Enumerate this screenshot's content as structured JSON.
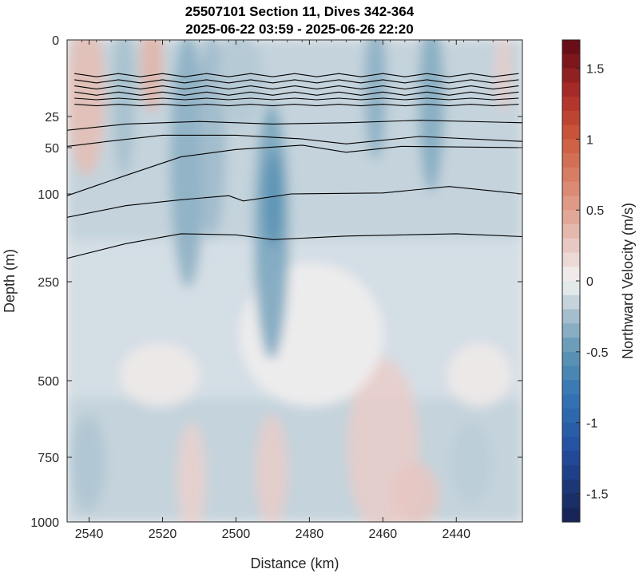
{
  "chart_data": {
    "type": "heatmap",
    "title": "25507101 Section 11, Dives 342-364",
    "subtitle": "2025-06-22 03:59 - 2025-06-26 22:20",
    "xlabel": "Distance (km)",
    "ylabel": "Depth (m)",
    "colorbar_label": "Northward Velocity (m/s)",
    "xlim": [
      2546,
      2422
    ],
    "x_ticks": [
      "2540",
      "2520",
      "2500",
      "2480",
      "2460",
      "2440"
    ],
    "y_ticks": [
      "0",
      "25",
      "50",
      "100",
      "250",
      "500",
      "750",
      "1000"
    ],
    "colorbar_range": [
      -1.7,
      1.7
    ],
    "colorbar_ticks": [
      "1.5",
      "1",
      "0.5",
      "0",
      "-0.5",
      "-1",
      "-1.5"
    ],
    "colors": {
      "negative_max": "#1a2a5e",
      "negative_mid": "#2f73b8",
      "zero": "#f2f2f2",
      "positive_mid": "#d8705a",
      "positive_max": "#5a0a12",
      "contour": "#000000"
    }
  }
}
